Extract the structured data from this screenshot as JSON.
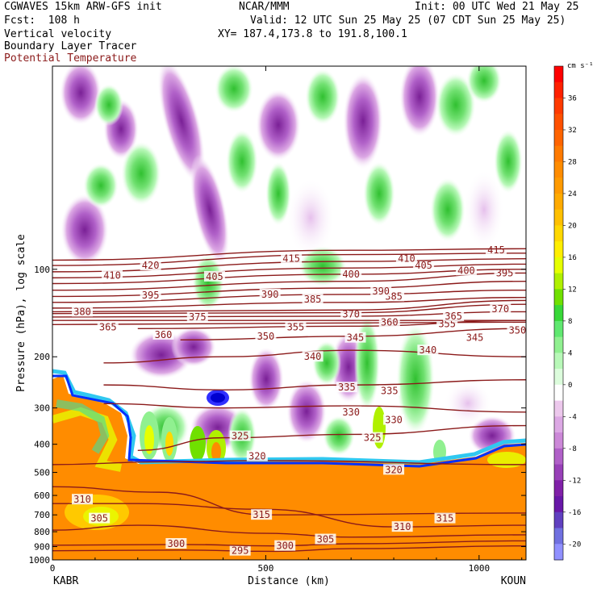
{
  "header": {
    "line1_left": "CGWAVES 15km ARW-GFS init",
    "line1_center": "NCAR/MMM",
    "line1_right": "Init: 00 UTC Wed 21 May 25",
    "line2_left": "Fcst:  108 h",
    "line2_right": "Valid: 12 UTC Sun 25 May 25 (07 CDT Sun 25 May 25)",
    "line3_left": "Vertical velocity",
    "line3_right": "XY= 187.4,173.8 to 191.8,100.1",
    "line4_left": "Boundary Layer Tracer",
    "line5_left": "Potential Temperature"
  },
  "colors": {
    "potential_temperature": "#8b1a1a",
    "tracer_fill": "#ff8c00",
    "zero_band": "#ffffff"
  },
  "chart_data": {
    "type": "heatmap",
    "title": "",
    "xlabel": "Distance (km)",
    "ylabel": "Pressure (hPa), log scale",
    "x_ticks": [
      "0",
      "500",
      "1000"
    ],
    "x_endpoints": {
      "left": "KABR",
      "right": "KOUN"
    },
    "xlim": [
      0,
      1110
    ],
    "y_ticks": [
      "100",
      "200",
      "300",
      "400",
      "500",
      "600",
      "700",
      "800",
      "900",
      "1000"
    ],
    "yscale": "log",
    "ylim": [
      1000,
      20
    ],
    "colorbar": {
      "unit": "cm s⁻¹",
      "labels": [
        "36",
        "32",
        "28",
        "24",
        "20",
        "16",
        "12",
        "8",
        "4",
        "0",
        "-4",
        "-8",
        "-12",
        "-16",
        "-20"
      ],
      "values": [
        38,
        36,
        34,
        32,
        30,
        28,
        26,
        24,
        22,
        20,
        18,
        16,
        14,
        12,
        10,
        8,
        6,
        4,
        2,
        0,
        -2,
        -4,
        -6,
        -8,
        -10,
        -12,
        -14,
        -16,
        -18,
        -20,
        -22
      ],
      "colors": [
        "#ff0000",
        "#ff2000",
        "#ff3a00",
        "#ff5000",
        "#ff6400",
        "#ff7a00",
        "#ff8c00",
        "#ff9a00",
        "#ffaa00",
        "#ffc000",
        "#ffd800",
        "#ffee00",
        "#e6ff00",
        "#b0f000",
        "#70e000",
        "#38d838",
        "#60e870",
        "#90f090",
        "#b8f8b8",
        "#dcfcdc",
        "#ffffff",
        "#ecc8ec",
        "#dca8e4",
        "#cc88d8",
        "#b060c8",
        "#9840b8",
        "#8020a8",
        "#6818a8",
        "#6040c0",
        "#7070e0",
        "#9090ff"
      ]
    },
    "theta_contours": [
      {
        "label": "295",
        "points": [
          [
            0,
            930
          ],
          [
            300,
            925
          ],
          [
            520,
            935
          ],
          [
            700,
            915
          ],
          [
            1110,
            895
          ]
        ],
        "labels_at": [
          [
            440,
            930
          ]
        ]
      },
      {
        "label": "300",
        "points": [
          [
            0,
            890
          ],
          [
            300,
            885
          ],
          [
            520,
            895
          ],
          [
            700,
            880
          ],
          [
            1110,
            860
          ]
        ],
        "labels_at": [
          [
            290,
            880
          ],
          [
            545,
            895
          ]
        ]
      },
      {
        "label": "305",
        "points": [
          [
            0,
            790
          ],
          [
            200,
            760
          ],
          [
            500,
            810
          ],
          [
            700,
            835
          ],
          [
            1110,
            820
          ]
        ],
        "labels_at": [
          [
            110,
            720
          ],
          [
            640,
            850
          ]
        ]
      },
      {
        "label": "310",
        "points": [
          [
            0,
            640
          ],
          [
            200,
            640
          ],
          [
            500,
            670
          ],
          [
            800,
            770
          ],
          [
            1110,
            760
          ]
        ],
        "labels_at": [
          [
            70,
            620
          ],
          [
            820,
            770
          ]
        ]
      },
      {
        "label": "315",
        "points": [
          [
            0,
            560
          ],
          [
            250,
            585
          ],
          [
            500,
            700
          ],
          [
            1110,
            690
          ]
        ],
        "labels_at": [
          [
            490,
            700
          ],
          [
            920,
            720
          ]
        ]
      },
      {
        "label": "320",
        "points": [
          [
            0,
            470
          ],
          [
            250,
            460
          ],
          [
            500,
            455
          ],
          [
            1110,
            470
          ]
        ],
        "labels_at": [
          [
            480,
            440
          ],
          [
            800,
            490
          ]
        ]
      },
      {
        "label": "325",
        "points": [
          [
            200,
            420
          ],
          [
            400,
            380
          ],
          [
            700,
            370
          ],
          [
            1110,
            345
          ]
        ],
        "labels_at": [
          [
            440,
            375
          ],
          [
            750,
            380
          ]
        ]
      },
      {
        "label": "330",
        "points": [
          [
            120,
            290
          ],
          [
            400,
            300
          ],
          [
            700,
            295
          ],
          [
            1110,
            310
          ]
        ],
        "labels_at": [
          [
            700,
            310
          ],
          [
            800,
            330
          ]
        ]
      },
      {
        "label": "335",
        "points": [
          [
            120,
            250
          ],
          [
            400,
            260
          ],
          [
            700,
            250
          ],
          [
            1110,
            240
          ]
        ],
        "labels_at": [
          [
            690,
            255
          ],
          [
            790,
            262
          ]
        ]
      },
      {
        "label": "340",
        "points": [
          [
            120,
            210
          ],
          [
            400,
            200
          ],
          [
            700,
            190
          ],
          [
            1110,
            200
          ]
        ],
        "labels_at": [
          [
            610,
            200
          ],
          [
            880,
            190
          ]
        ]
      },
      {
        "label": "345",
        "points": [
          [
            300,
            175
          ],
          [
            700,
            170
          ],
          [
            1110,
            160
          ]
        ],
        "labels_at": [
          [
            710,
            172
          ],
          [
            990,
            172
          ]
        ]
      },
      {
        "label": "350",
        "points": [
          [
            200,
            160
          ],
          [
            700,
            157
          ],
          [
            1110,
            150
          ]
        ],
        "labels_at": [
          [
            500,
            170
          ],
          [
            1090,
            162
          ]
        ]
      },
      {
        "label": "355",
        "points": [
          [
            0,
            155
          ],
          [
            700,
            153
          ],
          [
            1110,
            152
          ]
        ],
        "labels_at": [
          [
            570,
            158
          ],
          [
            925,
            154
          ]
        ]
      },
      {
        "label": "360",
        "points": [
          [
            0,
            150
          ],
          [
            700,
            150
          ],
          [
            1110,
            150
          ]
        ],
        "labels_at": [
          [
            260,
            168
          ],
          [
            790,
            152
          ]
        ]
      },
      {
        "label": "365",
        "points": [
          [
            0,
            146
          ],
          [
            700,
            145
          ],
          [
            1110,
            140
          ]
        ],
        "labels_at": [
          [
            130,
            158
          ],
          [
            940,
            145
          ]
        ]
      },
      {
        "label": "370",
        "points": [
          [
            0,
            142
          ],
          [
            700,
            141
          ],
          [
            1110,
            132
          ]
        ],
        "labels_at": [
          [
            700,
            143
          ],
          [
            1050,
            137
          ]
        ]
      },
      {
        "label": "375",
        "points": [
          [
            0,
            140
          ],
          [
            700,
            138
          ],
          [
            1110,
            128
          ]
        ],
        "labels_at": [
          [
            340,
            146
          ]
        ]
      },
      {
        "label": "380",
        "points": [
          [
            0,
            136
          ],
          [
            700,
            130
          ],
          [
            1110,
            125
          ]
        ],
        "labels_at": [
          [
            70,
            140
          ]
        ]
      },
      {
        "label": "385",
        "points": [
          [
            0,
            130
          ],
          [
            700,
            122
          ],
          [
            1110,
            118
          ]
        ],
        "labels_at": [
          [
            610,
            127
          ],
          [
            800,
            124
          ]
        ]
      },
      {
        "label": "390",
        "points": [
          [
            0,
            124
          ],
          [
            700,
            116
          ],
          [
            1110,
            110
          ]
        ],
        "labels_at": [
          [
            510,
            122
          ],
          [
            770,
            119
          ]
        ]
      },
      {
        "label": "395",
        "points": [
          [
            0,
            118
          ],
          [
            700,
            110
          ],
          [
            1110,
            103
          ]
        ],
        "labels_at": [
          [
            230,
            123
          ],
          [
            1060,
            103
          ]
        ]
      },
      {
        "label": "400",
        "points": [
          [
            0,
            112
          ],
          [
            700,
            104
          ],
          [
            1110,
            100
          ]
        ],
        "labels_at": [
          [
            700,
            104
          ],
          [
            970,
            101
          ]
        ]
      },
      {
        "label": "405",
        "points": [
          [
            0,
            107
          ],
          [
            700,
            99
          ],
          [
            1110,
            96
          ]
        ],
        "labels_at": [
          [
            380,
            106
          ],
          [
            870,
            97
          ]
        ]
      },
      {
        "label": "410",
        "points": [
          [
            0,
            102
          ],
          [
            700,
            94
          ],
          [
            1110,
            92
          ]
        ],
        "labels_at": [
          [
            140,
            105
          ],
          [
            830,
            92
          ]
        ]
      },
      {
        "label": "415",
        "points": [
          [
            0,
            97
          ],
          [
            700,
            89
          ],
          [
            1110,
            88
          ]
        ],
        "labels_at": [
          [
            560,
            92
          ],
          [
            1040,
            86
          ]
        ]
      },
      {
        "label": "420",
        "points": [
          [
            0,
            93
          ],
          [
            700,
            86
          ],
          [
            1110,
            85
          ]
        ],
        "labels_at": [
          [
            230,
            97
          ]
        ]
      }
    ]
  }
}
